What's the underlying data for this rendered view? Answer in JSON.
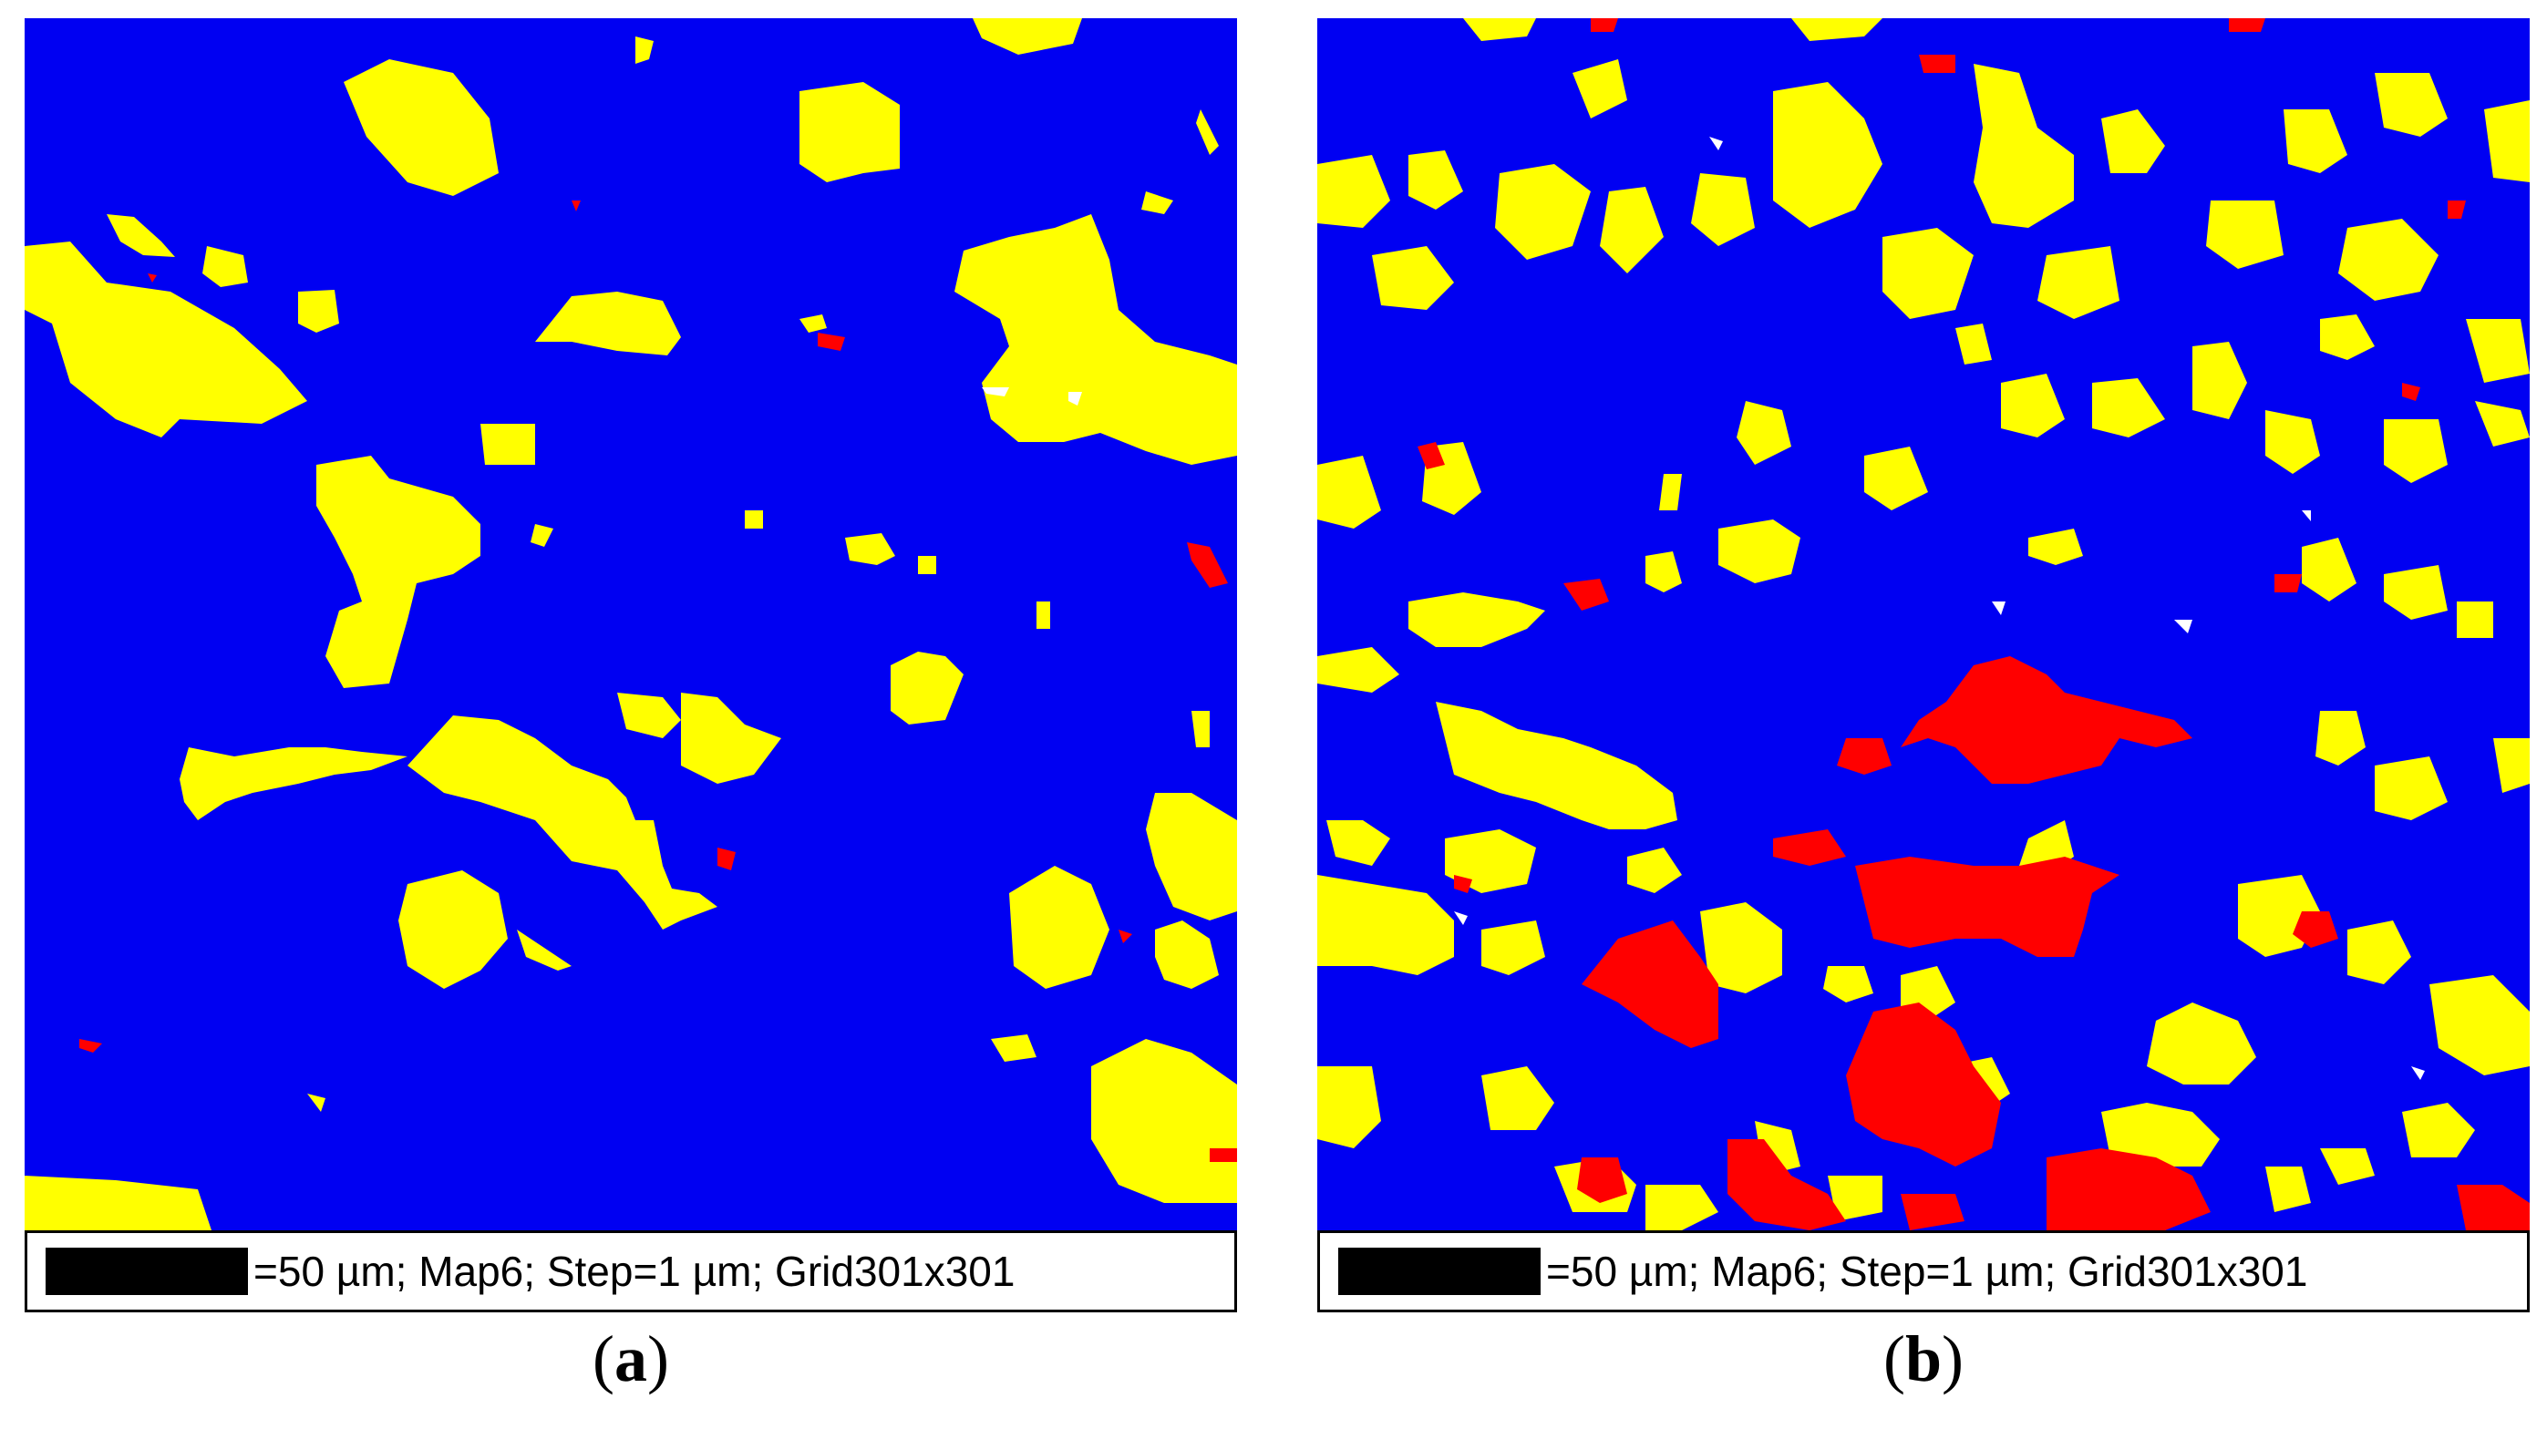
{
  "colors": {
    "background_phase": "#0000f2",
    "yellow_phase": "#ffff00",
    "red_phase": "#ff0000",
    "unindexed": "#ffffff"
  },
  "panels": [
    {
      "scalebar_text": "=50 µm; Map6; Step=1 µm; Grid301x301",
      "caption_open": "(",
      "caption_letter": "a",
      "caption_close": ")"
    },
    {
      "scalebar_text": "=50 µm; Map6; Step=1 µm; Grid301x301",
      "caption_open": "(",
      "caption_letter": "b",
      "caption_close": ")"
    }
  ]
}
